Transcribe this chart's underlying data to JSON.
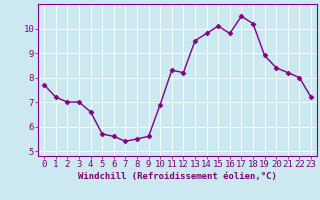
{
  "x": [
    0,
    1,
    2,
    3,
    4,
    5,
    6,
    7,
    8,
    9,
    10,
    11,
    12,
    13,
    14,
    15,
    16,
    17,
    18,
    19,
    20,
    21,
    22,
    23
  ],
  "y": [
    7.7,
    7.2,
    7.0,
    7.0,
    6.6,
    5.7,
    5.6,
    5.4,
    5.5,
    5.6,
    6.9,
    8.3,
    8.2,
    9.5,
    9.8,
    10.1,
    9.8,
    10.5,
    10.2,
    8.9,
    8.4,
    8.2,
    8.0,
    7.2
  ],
  "line_color": "#800080",
  "marker": "D",
  "marker_size": 2.5,
  "bg_color": "#cce8f0",
  "grid_color": "#ffffff",
  "xlabel": "Windchill (Refroidissement éolien,°C)",
  "xlim": [
    -0.5,
    23.5
  ],
  "ylim": [
    4.8,
    11.0
  ],
  "yticks": [
    5,
    6,
    7,
    8,
    9,
    10
  ],
  "xticks": [
    0,
    1,
    2,
    3,
    4,
    5,
    6,
    7,
    8,
    9,
    10,
    11,
    12,
    13,
    14,
    15,
    16,
    17,
    18,
    19,
    20,
    21,
    22,
    23
  ],
  "axis_label_color": "#800080",
  "tick_color": "#800080",
  "font_size_xlabel": 6.5,
  "font_size_ticks": 6.5,
  "spine_color": "#800080",
  "linewidth": 1.0
}
